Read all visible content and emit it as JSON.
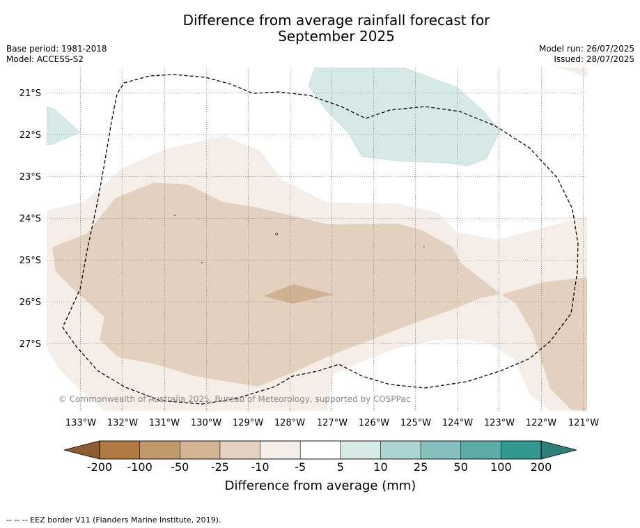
{
  "title": {
    "line1": "Difference from average rainfall forecast for",
    "line2": "September 2025"
  },
  "meta_left": {
    "base_period": "Base period: 1981-2018",
    "model": "Model: ACCESS-S2"
  },
  "meta_right": {
    "model_run": "Model run: 26/07/2025",
    "issued": "Issued: 28/07/2025"
  },
  "map": {
    "lon_labels": [
      "133°W",
      "132°W",
      "131°W",
      "130°W",
      "129°W",
      "128°W",
      "127°W",
      "126°W",
      "125°W",
      "124°W",
      "123°W",
      "122°W",
      "121°W"
    ],
    "lat_labels": [
      "21°S",
      "22°S",
      "23°S",
      "24°S",
      "25°S",
      "26°S",
      "27°S"
    ],
    "copyright": "© Commonwealth of Australia 2025, Bureau of Meteorology, supported by COSPPac",
    "colors": {
      "very_light_brown": "#f5eee8",
      "light_brown": "#e3d0be",
      "medium_brown": "#d1b193",
      "light_teal": "#d5e9e6",
      "eez_border": "#000000"
    }
  },
  "colorbar": {
    "tick_labels": [
      "-200",
      "-100",
      "-50",
      "-25",
      "-10",
      "-5",
      "5",
      "10",
      "25",
      "50",
      "100",
      "200"
    ],
    "colors": [
      "#b07a42",
      "#c29769",
      "#d3b391",
      "#e4d1bf",
      "#f5eee8",
      "#ffffff",
      "#d5e9e6",
      "#acd4d1",
      "#85c0bd",
      "#5daba7",
      "#349892"
    ],
    "low_extend_color": "#8f5c2e",
    "high_extend_color": "#2e7f7a",
    "label": "Difference from average (mm)"
  },
  "footer": "--  --  -- EEZ border V11 (Flanders Marine Institute, 2019)."
}
